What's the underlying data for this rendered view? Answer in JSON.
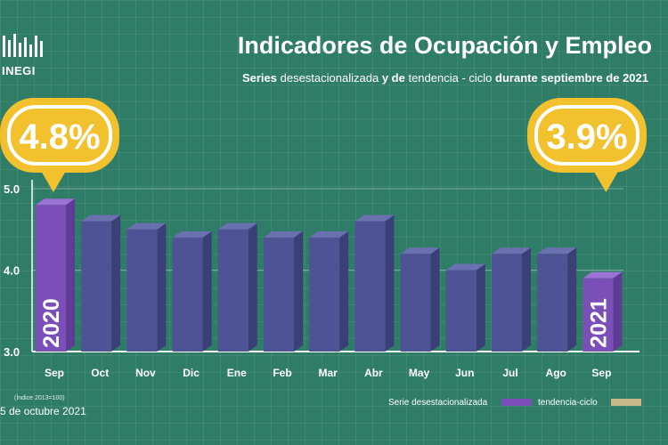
{
  "header": {
    "logo_text": "INEGI",
    "title": "Indicadores de Ocupación y Empleo",
    "subtitle_parts": [
      "Series",
      "desestacionalizada",
      "y de",
      "tendencia - ciclo",
      "durante septiembre de 2021"
    ]
  },
  "colors": {
    "background": "#2f7d67",
    "bar_regular_front": "#4d5394",
    "bar_highlight_front": "#7a4fb8",
    "callout": "#f2c12e",
    "trend": "#c9b98a"
  },
  "chart_data": {
    "type": "bar",
    "categories": [
      "Sep",
      "Oct",
      "Nov",
      "Dic",
      "Ene",
      "Feb",
      "Mar",
      "Abr",
      "May",
      "Jun",
      "Jul",
      "Ago",
      "Sep"
    ],
    "values": [
      4.8,
      4.6,
      4.5,
      4.4,
      4.5,
      4.4,
      4.4,
      4.6,
      4.2,
      4.0,
      4.2,
      4.2,
      3.9
    ],
    "highlighted": [
      0,
      12
    ],
    "bar_year_labels": {
      "0": "2020",
      "12": "2021"
    },
    "ylim": [
      3.0,
      5.0
    ],
    "yticks": [
      "3.0",
      "4.0",
      "5.0"
    ],
    "callouts": [
      {
        "category_index": 0,
        "label": "4.8%"
      },
      {
        "category_index": 12,
        "label": "3.9%"
      }
    ],
    "legend": [
      "Serie desestacionalizada",
      "tendencia-ciclo"
    ],
    "legend_placement": "bottom-right"
  },
  "footer": {
    "index_note": "(Índice 2013=100)",
    "date_note": "5 de octubre 2021"
  }
}
